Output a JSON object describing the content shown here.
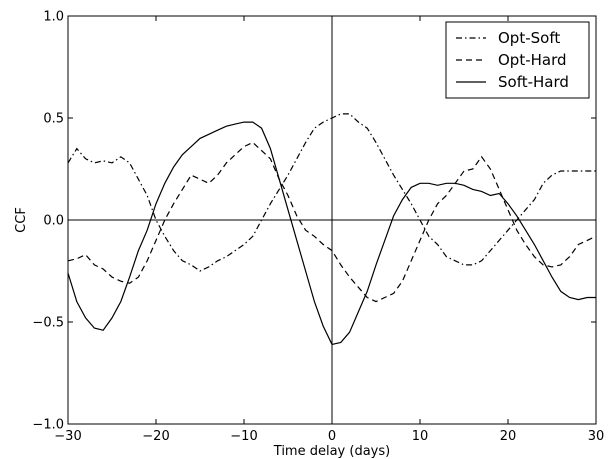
{
  "chart_data": {
    "type": "line",
    "xlabel": "Time delay (days)",
    "ylabel": "CCF",
    "xlim": [
      -30,
      30
    ],
    "ylim": [
      -1.0,
      1.0
    ],
    "xticks": [
      -30,
      -20,
      -10,
      0,
      10,
      20,
      30
    ],
    "xtick_labels": [
      "−30",
      "−20",
      "−10",
      "0",
      "10",
      "20",
      "30"
    ],
    "yticks": [
      -1.0,
      -0.5,
      0.0,
      0.5,
      1.0
    ],
    "ytick_labels": [
      "−1.0",
      "−0.5",
      "0.0",
      "0.5",
      "1.0"
    ],
    "grid": false,
    "legend_position": "top-right",
    "reference_lines": {
      "horizontal_at_y": 0,
      "vertical_at_x": 0
    },
    "series": [
      {
        "name": "Opt-Soft",
        "style": "dash-dot",
        "color": "#000000",
        "x": [
          -30,
          -29,
          -28,
          -27,
          -26,
          -25,
          -24,
          -23,
          -22,
          -21,
          -20,
          -19,
          -18,
          -17,
          -16,
          -15,
          -14,
          -13,
          -12,
          -11,
          -10,
          -9,
          -8,
          -7,
          -6,
          -5,
          -4,
          -3,
          -2,
          -1,
          0,
          1,
          2,
          3,
          4,
          5,
          6,
          7,
          8,
          9,
          10,
          11,
          12,
          13,
          14,
          15,
          16,
          17,
          18,
          19,
          20,
          21,
          22,
          23,
          24,
          25,
          26,
          27,
          28,
          29,
          30
        ],
        "y": [
          0.28,
          0.35,
          0.3,
          0.28,
          0.29,
          0.28,
          0.31,
          0.28,
          0.2,
          0.12,
          0.0,
          -0.08,
          -0.15,
          -0.2,
          -0.22,
          -0.25,
          -0.23,
          -0.2,
          -0.18,
          -0.15,
          -0.12,
          -0.08,
          0.0,
          0.08,
          0.15,
          0.22,
          0.3,
          0.38,
          0.45,
          0.48,
          0.5,
          0.52,
          0.52,
          0.48,
          0.45,
          0.38,
          0.3,
          0.22,
          0.15,
          0.08,
          0.0,
          -0.08,
          -0.12,
          -0.18,
          -0.2,
          -0.22,
          -0.22,
          -0.2,
          -0.15,
          -0.1,
          -0.05,
          0.0,
          0.05,
          0.1,
          0.18,
          0.22,
          0.24,
          0.24,
          0.24,
          0.24,
          0.24
        ]
      },
      {
        "name": "Opt-Hard",
        "style": "dashed",
        "color": "#000000",
        "x": [
          -30,
          -29,
          -28,
          -27,
          -26,
          -25,
          -24,
          -23,
          -22,
          -21,
          -20,
          -19,
          -18,
          -17,
          -16,
          -15,
          -14,
          -13,
          -12,
          -11,
          -10,
          -9,
          -8,
          -7,
          -6,
          -5,
          -4,
          -3,
          -2,
          -1,
          0,
          1,
          2,
          3,
          4,
          5,
          6,
          7,
          8,
          9,
          10,
          11,
          12,
          13,
          14,
          15,
          16,
          17,
          18,
          19,
          20,
          21,
          22,
          23,
          24,
          25,
          26,
          27,
          28,
          29,
          30
        ],
        "y": [
          -0.2,
          -0.19,
          -0.17,
          -0.22,
          -0.24,
          -0.28,
          -0.3,
          -0.31,
          -0.28,
          -0.2,
          -0.1,
          0.0,
          0.08,
          0.15,
          0.22,
          0.2,
          0.18,
          0.22,
          0.28,
          0.32,
          0.36,
          0.38,
          0.34,
          0.3,
          0.2,
          0.12,
          0.02,
          -0.05,
          -0.08,
          -0.12,
          -0.15,
          -0.22,
          -0.28,
          -0.33,
          -0.38,
          -0.4,
          -0.38,
          -0.36,
          -0.3,
          -0.2,
          -0.1,
          0.0,
          0.08,
          0.12,
          0.18,
          0.24,
          0.25,
          0.31,
          0.25,
          0.15,
          0.05,
          -0.05,
          -0.12,
          -0.18,
          -0.22,
          -0.23,
          -0.22,
          -0.18,
          -0.12,
          -0.1,
          -0.08
        ]
      },
      {
        "name": "Soft-Hard",
        "style": "solid",
        "color": "#000000",
        "x": [
          -30,
          -29,
          -28,
          -27,
          -26,
          -25,
          -24,
          -23,
          -22,
          -21,
          -20,
          -19,
          -18,
          -17,
          -16,
          -15,
          -14,
          -13,
          -12,
          -11,
          -10,
          -9,
          -8,
          -7,
          -6,
          -5,
          -4,
          -3,
          -2,
          -1,
          0,
          1,
          2,
          3,
          4,
          5,
          6,
          7,
          8,
          9,
          10,
          11,
          12,
          13,
          14,
          15,
          16,
          17,
          18,
          19,
          20,
          21,
          22,
          23,
          24,
          25,
          26,
          27,
          28,
          29,
          30
        ],
        "y": [
          -0.26,
          -0.4,
          -0.48,
          -0.53,
          -0.54,
          -0.48,
          -0.4,
          -0.28,
          -0.15,
          -0.05,
          0.08,
          0.18,
          0.26,
          0.32,
          0.36,
          0.4,
          0.42,
          0.44,
          0.46,
          0.47,
          0.48,
          0.48,
          0.45,
          0.35,
          0.2,
          0.05,
          -0.1,
          -0.25,
          -0.4,
          -0.52,
          -0.61,
          -0.6,
          -0.55,
          -0.45,
          -0.35,
          -0.22,
          -0.1,
          0.02,
          0.1,
          0.16,
          0.18,
          0.18,
          0.17,
          0.18,
          0.18,
          0.17,
          0.15,
          0.14,
          0.12,
          0.13,
          0.08,
          0.02,
          -0.05,
          -0.12,
          -0.2,
          -0.28,
          -0.35,
          -0.38,
          -0.39,
          -0.38,
          -0.38
        ]
      }
    ]
  }
}
